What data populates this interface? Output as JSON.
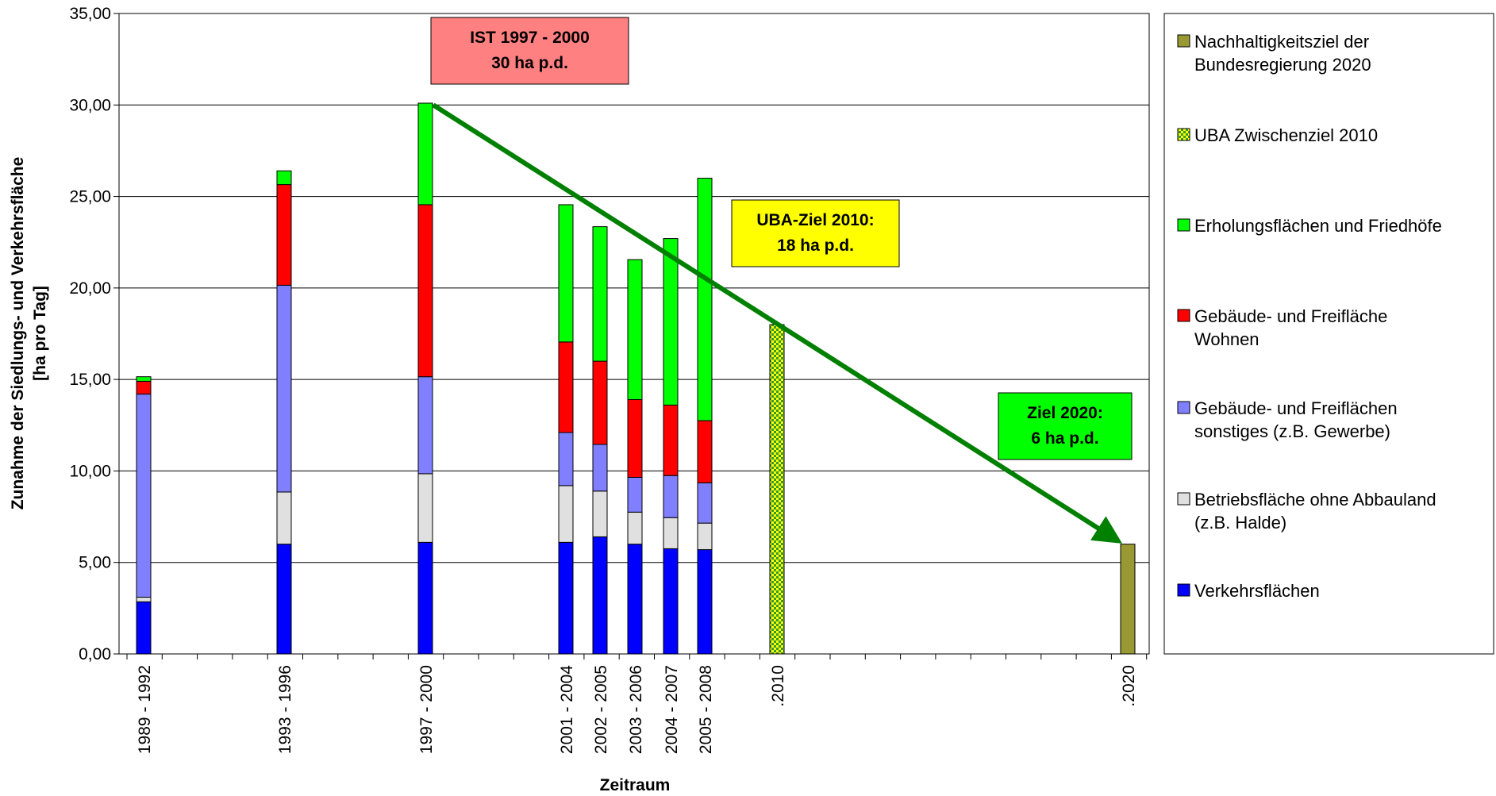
{
  "chart_data": {
    "type": "bar",
    "stacked": true,
    "xlabel": "Zeitraum",
    "ylabel_lines": [
      "Zunahme der Siedlungs- und Verkehrsfläche",
      "[ha pro Tag]"
    ],
    "ylim": [
      0,
      35
    ],
    "yticks": [
      "0,00",
      "5,00",
      "10,00",
      "15,00",
      "20,00",
      "25,00",
      "30,00",
      "35,00"
    ],
    "grid": true,
    "legend_position": "right",
    "categories": [
      "1989 - 1992",
      "1993 - 1996",
      "1997 - 2000",
      "2001 - 2004",
      "2002 - 2005",
      "2003 - 2006",
      "2004 - 2007",
      "2005 - 2008",
      ".2010",
      ".2020"
    ],
    "series": [
      {
        "name": "Verkehrsflächen",
        "color": "#0000ff",
        "values": [
          2.85,
          6.0,
          6.1,
          6.1,
          6.4,
          6.0,
          5.75,
          5.7,
          null,
          null
        ]
      },
      {
        "name": "Betriebsfläche ohne Abbauland (z.B. Halde)",
        "color": "#e0e0e0",
        "values": [
          0.25,
          2.85,
          3.75,
          3.1,
          2.5,
          1.75,
          1.7,
          1.45,
          null,
          null
        ]
      },
      {
        "name": "Gebäude- und Freiflächen sonstiges (z.B. Gewerbe)",
        "color": "#8080ff",
        "values": [
          11.1,
          11.3,
          5.3,
          2.9,
          2.55,
          1.9,
          2.3,
          2.2,
          null,
          null
        ]
      },
      {
        "name": "Gebäude- und Freifläche Wohnen",
        "color": "#ff0000",
        "values": [
          0.7,
          5.5,
          9.4,
          4.95,
          4.55,
          4.25,
          3.85,
          3.4,
          null,
          null
        ]
      },
      {
        "name": "Erholungsflächen und Friedhöfe",
        "color": "#00ff00",
        "values": [
          0.25,
          0.75,
          5.55,
          7.5,
          7.35,
          7.65,
          9.1,
          13.25,
          null,
          null
        ]
      },
      {
        "name": "UBA Zwischenziel 2010",
        "color": "#ffff00",
        "pattern": "checker-yellow-green",
        "values": [
          null,
          null,
          null,
          null,
          null,
          null,
          null,
          null,
          18.0,
          null
        ]
      },
      {
        "name": "Nachhaltigkeitsziel der Bundesregierung 2020",
        "color": "#999933",
        "values": [
          null,
          null,
          null,
          null,
          null,
          null,
          null,
          null,
          null,
          6.0
        ]
      }
    ],
    "legend": [
      {
        "lines": [
          "Nachhaltigkeitsziel der",
          "Bundesregierung 2020"
        ],
        "color": "#999933",
        "pattern": "solid"
      },
      {
        "lines": [
          "UBA Zwischenziel 2010"
        ],
        "color": "#ffff00",
        "pattern": "checker"
      },
      {
        "lines": [
          "Erholungsflächen und Friedhöfe"
        ],
        "color": "#00ff00",
        "pattern": "solid"
      },
      {
        "lines": [
          "Gebäude- und Freifläche",
          "Wohnen"
        ],
        "color": "#ff0000",
        "pattern": "solid"
      },
      {
        "lines": [
          "Gebäude- und Freiflächen",
          "sonstiges (z.B. Gewerbe)"
        ],
        "color": "#8080ff",
        "pattern": "solid"
      },
      {
        "lines": [
          "Betriebsfläche ohne Abbauland",
          "(z.B. Halde)"
        ],
        "color": "#e0e0e0",
        "pattern": "solid"
      },
      {
        "lines": [
          "Verkehrsflächen"
        ],
        "color": "#0000ff",
        "pattern": "solid"
      }
    ],
    "annotations": [
      {
        "lines": [
          "IST 1997 - 2000",
          "30 ha p.d."
        ],
        "color": "#ff8080"
      },
      {
        "lines": [
          "UBA-Ziel 2010:",
          "18 ha p.d."
        ],
        "color": "#ffff00"
      },
      {
        "lines": [
          "Ziel 2020:",
          "6 ha p.d."
        ],
        "color": "#00ff00"
      }
    ],
    "trend_arrow": {
      "from_value": 30.0,
      "to_value": 6.0,
      "color": "#008000"
    }
  }
}
